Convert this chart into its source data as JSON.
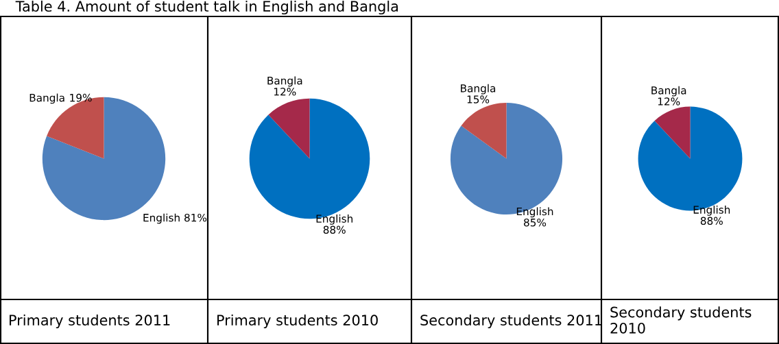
{
  "chart_data": [
    {
      "type": "pie",
      "title": "Table 4. Amount of student talk in English and Bangla",
      "xlabel": "Primary students 2011",
      "categories": [
        "English",
        "Bangla"
      ],
      "values": [
        81,
        19
      ],
      "value_labels": [
        "81%",
        "19%"
      ],
      "colors": [
        "#4f81bd",
        "#c0504d"
      ]
    },
    {
      "type": "pie",
      "xlabel": "Primary students 2010",
      "categories": [
        "English",
        "Bangla"
      ],
      "values": [
        88,
        12
      ],
      "value_labels": [
        "88%",
        "12%"
      ],
      "colors": [
        "#0070c0",
        "#a5294a"
      ]
    },
    {
      "type": "pie",
      "xlabel": "Secondary students 2011",
      "categories": [
        "English",
        "Bangla"
      ],
      "values": [
        85,
        15
      ],
      "value_labels": [
        "85%",
        "15%"
      ],
      "colors": [
        "#4f81bd",
        "#c0504d"
      ]
    },
    {
      "type": "pie",
      "xlabel": "Secondary students 2010",
      "categories": [
        "English",
        "Bangla"
      ],
      "values": [
        88,
        12
      ],
      "value_labels": [
        "88%",
        "12%"
      ],
      "colors": [
        "#0070c0",
        "#a5294a"
      ]
    }
  ]
}
